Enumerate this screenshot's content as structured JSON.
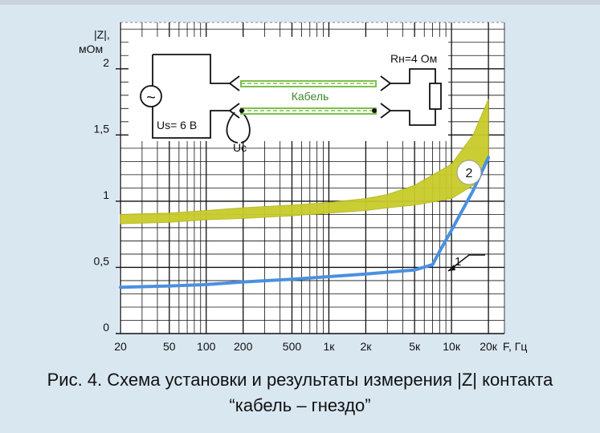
{
  "chart_data": {
    "type": "line",
    "ylabel": "|Z|,\nмОм",
    "xlabel": "F, Гц",
    "x_scale": "log",
    "x_range": [
      20,
      27000
    ],
    "ylim": [
      0,
      2.35
    ],
    "grid": true,
    "x_ticks": [
      {
        "value": 20,
        "label": "20"
      },
      {
        "value": 50,
        "label": "50"
      },
      {
        "value": 100,
        "label": "100"
      },
      {
        "value": 200,
        "label": "200"
      },
      {
        "value": 500,
        "label": "500"
      },
      {
        "value": 1000,
        "label": "1к"
      },
      {
        "value": 2000,
        "label": "2к"
      },
      {
        "value": 5000,
        "label": "5к"
      },
      {
        "value": 10000,
        "label": "10к"
      },
      {
        "value": 20000,
        "label": "20к"
      }
    ],
    "y_ticks": [
      {
        "value": 0,
        "label": "0"
      },
      {
        "value": 0.5,
        "label": "0,5"
      },
      {
        "value": 1,
        "label": "1"
      },
      {
        "value": 1.5,
        "label": "1,5"
      },
      {
        "value": 2,
        "label": "2"
      }
    ],
    "series": [
      {
        "name": "1",
        "color": "#4a90e0",
        "x": [
          20,
          50,
          100,
          200,
          500,
          1000,
          2000,
          5000,
          7000,
          8000,
          10000,
          15000,
          20000
        ],
        "y": [
          0.35,
          0.36,
          0.37,
          0.39,
          0.41,
          0.43,
          0.45,
          0.48,
          0.52,
          0.62,
          0.78,
          1.08,
          1.33
        ]
      },
      {
        "name": "2",
        "color": "#c8cc2a",
        "type": "band",
        "x": [
          20,
          50,
          100,
          200,
          500,
          1000,
          2000,
          3000,
          5000,
          10000,
          15000,
          20000
        ],
        "y_low": [
          0.83,
          0.84,
          0.86,
          0.87,
          0.89,
          0.91,
          0.93,
          0.95,
          0.97,
          1.02,
          1.12,
          1.32
        ],
        "y_high": [
          0.9,
          0.91,
          0.93,
          0.95,
          0.97,
          0.99,
          1.02,
          1.05,
          1.12,
          1.28,
          1.5,
          1.77
        ]
      }
    ]
  },
  "schematic": {
    "rn_label": "Rн=4 Ом",
    "cable_label": "Кабель",
    "us_label": "Us= 6 В",
    "uc_label": "Uc",
    "source_symbol": "~"
  },
  "caption": {
    "line1": "Рис. 4. Схема установки и результаты измерения |Z| контакта",
    "line2": "“кабель – гнездо”"
  },
  "colors": {
    "background": "#d9e7f1",
    "panel": "#ffffff",
    "grid": "#111111",
    "band": "#c8cc2a",
    "curve1": "#4a90e0",
    "cable": "#7cc04a"
  }
}
